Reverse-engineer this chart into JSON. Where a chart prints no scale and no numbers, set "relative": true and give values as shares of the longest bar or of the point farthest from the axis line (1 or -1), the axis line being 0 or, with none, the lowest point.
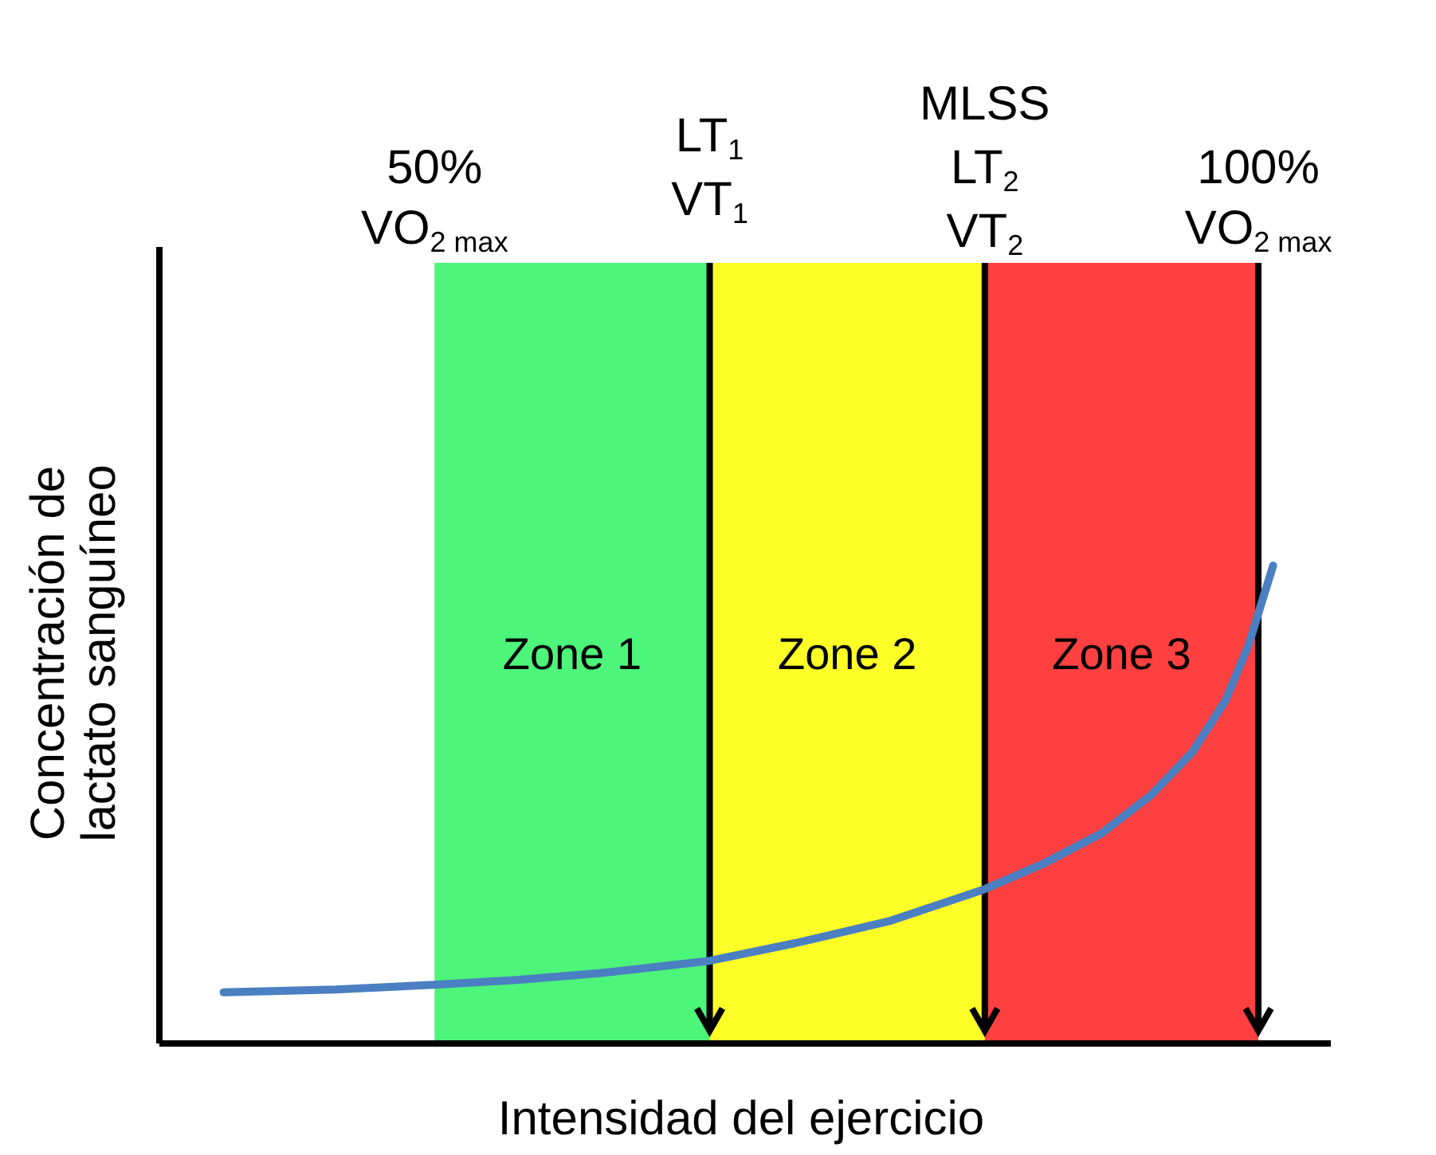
{
  "chart_data": {
    "type": "line",
    "relative": true,
    "xlabel": "Intensidad del ejercicio",
    "ylabel": "Concentración de\nlactato sanguíneo",
    "xlim": [
      33.3,
      104.4
    ],
    "xticks": [
      {
        "value": 50,
        "label": "50%"
      },
      {
        "value": 66.7,
        "label": "LT$_{1}$\nVT$_{1}$"
      },
      {
        "value": 83.4,
        "label": "MLSS\nLT$_{2}$\nVT$_{2}$"
      },
      {
        "value": 100,
        "label": "100%"
      }
    ],
    "annotations": [
      "VO$_{2 max}$",
      "VO$_{2 max}$"
    ],
    "tick_labels": "x",
    "marker": "none",
    "line_style": "solid",
    "series": [
      {
        "color": "#4a7fc1",
        "x": [
          37.2,
          44,
          50,
          55,
          60,
          66.7,
          71.9,
          77.7,
          83.4,
          87,
          90.5,
          93.5,
          96,
          98,
          99.4,
          100.9
        ],
        "values": [
          0.107,
          0.113,
          0.123,
          0.133,
          0.147,
          0.173,
          0.21,
          0.257,
          0.323,
          0.377,
          0.44,
          0.52,
          0.61,
          0.717,
          0.833,
          1
        ]
      }
    ],
    "bands": [
      {
        "axis": "x",
        "from": 50,
        "to": 66.7,
        "label": "Zone 1",
        "color": "#4df57a"
      },
      {
        "axis": "x",
        "from": 66.7,
        "to": 83.4,
        "label": "Zone 2",
        "color": "#ffff28"
      },
      {
        "axis": "x",
        "from": 83.4,
        "to": 100,
        "label": "Zone 3",
        "color": "#ff4040"
      }
    ],
    "ref_lines": [
      {
        "axis": "x",
        "value": 66.7,
        "color": "#000000"
      },
      {
        "axis": "x",
        "value": 83.4,
        "color": "#000000"
      },
      {
        "axis": "x",
        "value": 100,
        "color": "#000000"
      }
    ]
  }
}
